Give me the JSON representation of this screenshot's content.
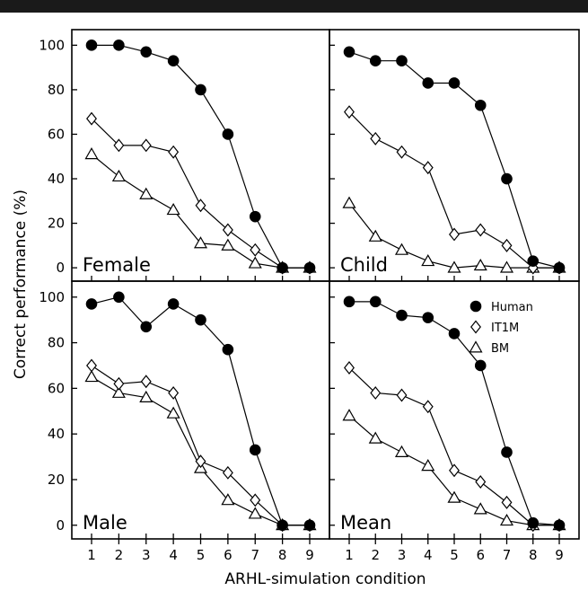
{
  "chart_data": [
    {
      "type": "line",
      "panel_label": "Female",
      "x": [
        1,
        2,
        3,
        4,
        5,
        6,
        7,
        8,
        9
      ],
      "ylim": [
        -6,
        107
      ],
      "series": [
        {
          "name": "Human",
          "values": [
            100,
            100,
            97,
            93,
            80,
            60,
            23,
            0,
            0
          ]
        },
        {
          "name": "IT1M",
          "values": [
            67,
            55,
            55,
            52,
            28,
            17,
            8,
            0,
            0
          ]
        },
        {
          "name": "BM",
          "values": [
            51,
            41,
            33,
            26,
            11,
            10,
            2,
            0,
            0
          ]
        }
      ]
    },
    {
      "type": "line",
      "panel_label": "Child",
      "x": [
        1,
        2,
        3,
        4,
        5,
        6,
        7,
        8,
        9
      ],
      "ylim": [
        -6,
        107
      ],
      "series": [
        {
          "name": "Human",
          "values": [
            97,
            93,
            93,
            83,
            83,
            73,
            40,
            3,
            0
          ]
        },
        {
          "name": "IT1M",
          "values": [
            70,
            58,
            52,
            45,
            15,
            17,
            10,
            0,
            0
          ]
        },
        {
          "name": "BM",
          "values": [
            29,
            14,
            8,
            3,
            0,
            1,
            0,
            0,
            0
          ]
        }
      ]
    },
    {
      "type": "line",
      "panel_label": "Male",
      "x": [
        1,
        2,
        3,
        4,
        5,
        6,
        7,
        8,
        9
      ],
      "ylim": [
        -6,
        107
      ],
      "series": [
        {
          "name": "Human",
          "values": [
            97,
            100,
            87,
            97,
            90,
            77,
            33,
            0,
            0
          ]
        },
        {
          "name": "IT1M",
          "values": [
            70,
            62,
            63,
            58,
            28,
            23,
            11,
            0,
            0
          ]
        },
        {
          "name": "BM",
          "values": [
            65,
            58,
            56,
            49,
            25,
            11,
            5,
            0,
            0
          ]
        }
      ]
    },
    {
      "type": "line",
      "panel_label": "Mean",
      "x": [
        1,
        2,
        3,
        4,
        5,
        6,
        7,
        8,
        9
      ],
      "ylim": [
        -6,
        107
      ],
      "series": [
        {
          "name": "Human",
          "values": [
            98,
            98,
            92,
            91,
            84,
            70,
            32,
            1,
            0
          ]
        },
        {
          "name": "IT1M",
          "values": [
            69,
            58,
            57,
            52,
            24,
            19,
            10,
            0,
            0
          ]
        },
        {
          "name": "BM",
          "values": [
            48,
            38,
            32,
            26,
            12,
            7,
            2,
            0,
            0
          ]
        }
      ]
    }
  ],
  "shared_axes": {
    "xlabel": "ARHL-simulation condition",
    "ylabel": "Correct performance (%)",
    "x_ticks": [
      "1",
      "2",
      "3",
      "4",
      "5",
      "6",
      "7",
      "8",
      "9"
    ],
    "y_ticks": [
      "0",
      "20",
      "40",
      "60",
      "80",
      "100"
    ],
    "grid": false
  },
  "legend": {
    "placement": "top-right of Mean panel",
    "entries": [
      {
        "label": "Human",
        "marker": "filled-circle"
      },
      {
        "label": "IT1M",
        "marker": "open-diamond"
      },
      {
        "label": "BM",
        "marker": "open-triangle"
      }
    ]
  },
  "colors": {
    "ink": "#000000",
    "background": "#ffffff",
    "top_rule": "#1a1a1a"
  }
}
